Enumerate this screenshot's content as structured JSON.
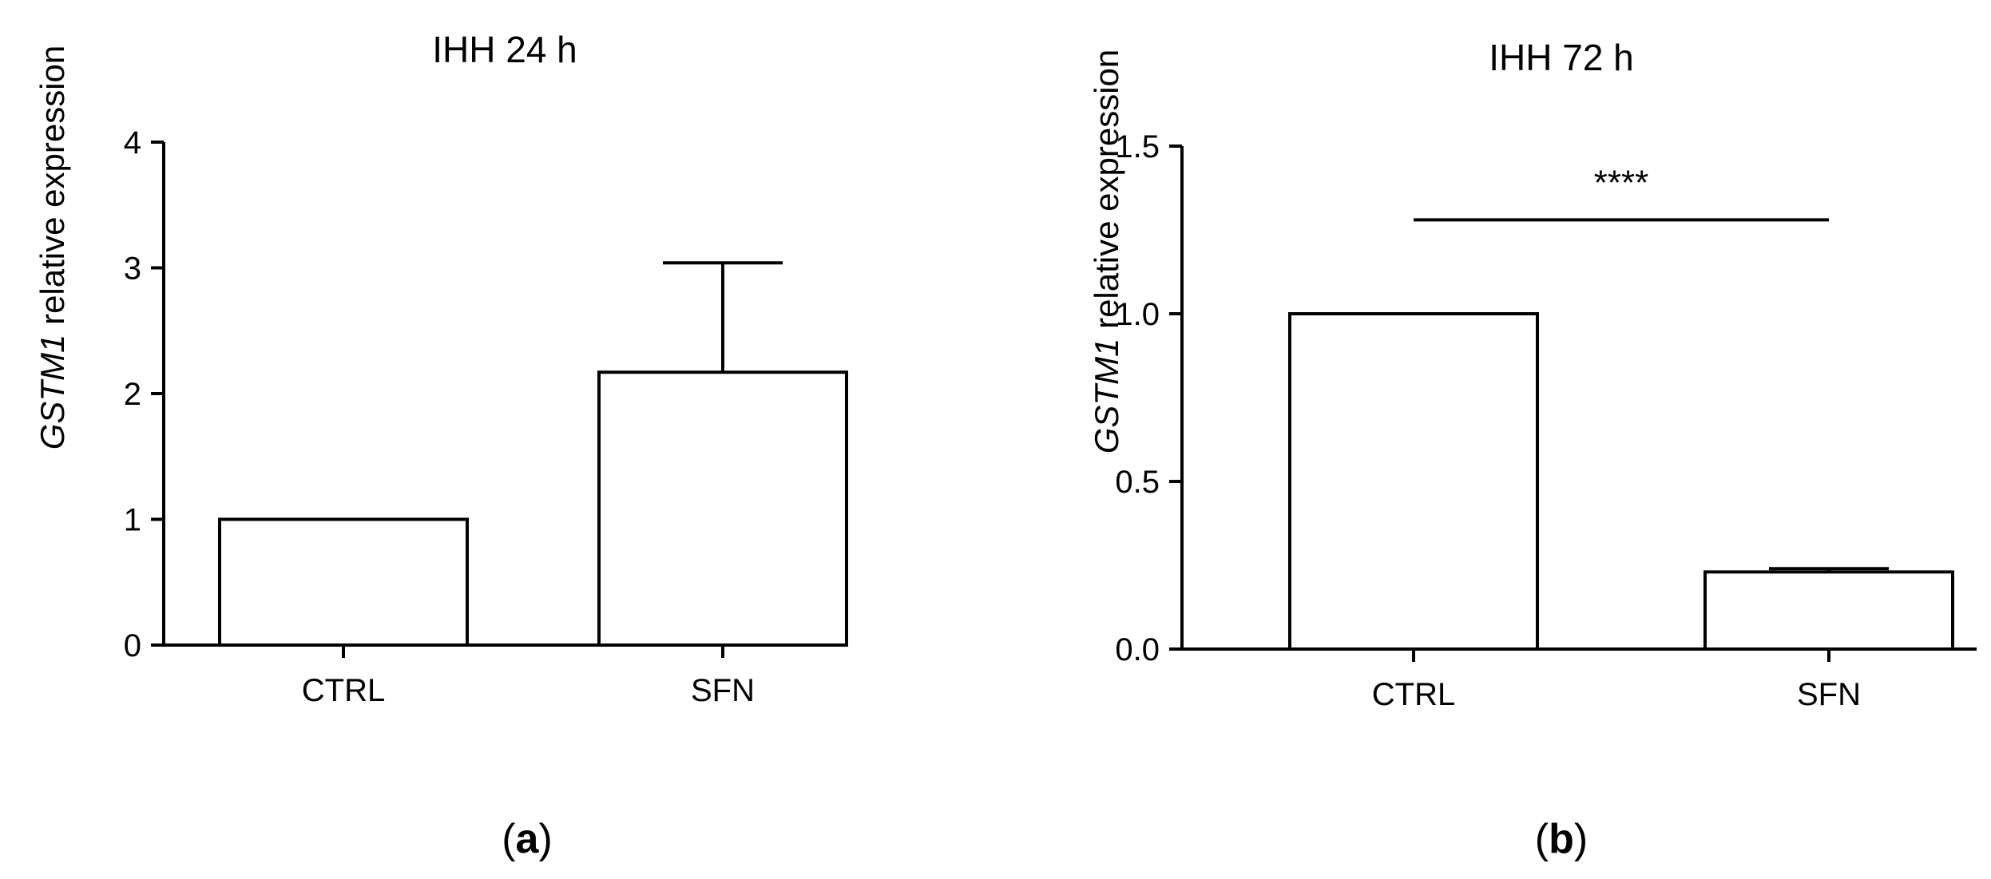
{
  "figure": {
    "panel_labels": [
      {
        "open": "(",
        "letter": "a",
        "close": ")"
      },
      {
        "open": "(",
        "letter": "b",
        "close": ")"
      }
    ]
  },
  "chart_data": [
    {
      "type": "bar",
      "title": "IHH 24 h",
      "ylabel_gene": "GSTM1",
      "ylabel_rest": " relative expression",
      "xlabel": "",
      "categories": [
        "CTRL",
        "SFN"
      ],
      "values": [
        1.0,
        2.17
      ],
      "errors_upper": [
        0,
        0.87
      ],
      "ylim": [
        0,
        4
      ],
      "yticks": [
        0,
        1,
        2,
        3,
        4
      ],
      "ytick_labels": [
        "0",
        "1",
        "2",
        "3",
        "4"
      ],
      "significance": null,
      "grid": false,
      "legend": "none"
    },
    {
      "type": "bar",
      "title": "IHH 72 h",
      "ylabel_gene": "GSTM1",
      "ylabel_rest": " relative expression",
      "xlabel": "",
      "categories": [
        "CTRL",
        "SFN"
      ],
      "values": [
        1.0,
        0.23
      ],
      "errors_upper": [
        0,
        0.01
      ],
      "ylim": [
        0,
        1.5
      ],
      "yticks": [
        0,
        0.5,
        1.0,
        1.5
      ],
      "ytick_labels": [
        "0.0",
        "0.5",
        "1.0",
        "1.5"
      ],
      "significance": {
        "label": "****",
        "from": "CTRL",
        "to": "SFN",
        "level": 1.28
      },
      "grid": false,
      "legend": "none"
    }
  ]
}
